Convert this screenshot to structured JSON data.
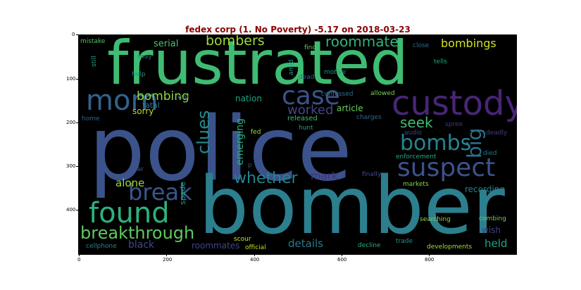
{
  "title": "fedex corp (1. No Poverty) -5.17 on 2018-03-23",
  "x_ticks": [
    "0",
    "200",
    "400",
    "600",
    "800"
  ],
  "y_ticks": [
    "0",
    "100",
    "200",
    "300",
    "400"
  ],
  "words": [
    {
      "text": "police",
      "color": "#3b528b"
    },
    {
      "text": "bomber",
      "color": "#2c7f8e"
    },
    {
      "text": "frustrated",
      "color": "#3fbc73"
    },
    {
      "text": "custody",
      "color": "#482677"
    },
    {
      "text": "mom",
      "color": "#33638d"
    },
    {
      "text": "case",
      "color": "#3b528b"
    },
    {
      "text": "suspect",
      "color": "#3b528b"
    },
    {
      "text": "found",
      "color": "#2db27d"
    },
    {
      "text": "break",
      "color": "#39568c"
    },
    {
      "text": "breakthrough",
      "color": "#5ec962"
    },
    {
      "text": "bombs",
      "color": "#25848e"
    },
    {
      "text": "big",
      "color": "#2c728e"
    },
    {
      "text": "whether",
      "color": "#26828e"
    },
    {
      "text": "clues",
      "color": "#238a8d"
    },
    {
      "text": "bombing",
      "color": "#8fd744"
    },
    {
      "text": "bombers",
      "color": "#a0da39"
    },
    {
      "text": "roommate",
      "color": "#2fb47c"
    },
    {
      "text": "bombings",
      "color": "#d2e21b"
    },
    {
      "text": "worked",
      "color": "#404688"
    },
    {
      "text": "seek",
      "color": "#3fbc73"
    },
    {
      "text": "serial",
      "color": "#4ac16d"
    },
    {
      "text": "details",
      "color": "#2a788e"
    },
    {
      "text": "held",
      "color": "#20a386"
    },
    {
      "text": "black",
      "color": "#3e4a89"
    },
    {
      "text": "roommates",
      "color": "#414487"
    },
    {
      "text": "mark",
      "color": "#46307e"
    },
    {
      "text": "alone",
      "color": "#9bd93c"
    },
    {
      "text": "emerging",
      "color": "#29af7f"
    },
    {
      "text": "article",
      "color": "#6ccd5a"
    },
    {
      "text": "recording",
      "color": "#277f8e"
    },
    {
      "text": "wish",
      "color": "#433e85"
    },
    {
      "text": "nation",
      "color": "#20a386"
    },
    {
      "text": "sorry",
      "color": "#b5de2b"
    },
    {
      "text": "fatal",
      "color": "#2a788e"
    },
    {
      "text": "spade",
      "color": "#1f9e89"
    },
    {
      "text": "mistake",
      "color": "#52c569"
    },
    {
      "text": "find",
      "color": "#65cb5e"
    },
    {
      "text": "close",
      "color": "#2f6c8e"
    },
    {
      "text": "tells",
      "color": "#22a785"
    },
    {
      "text": "may",
      "color": "#33638d"
    },
    {
      "text": "still",
      "color": "#1fa088"
    },
    {
      "text": "amid",
      "color": "#1fa187"
    },
    {
      "text": "help",
      "color": "#1f9a8a"
    },
    {
      "text": "dead",
      "color": "#31678e"
    },
    {
      "text": "motive",
      "color": "#20928c"
    },
    {
      "text": "confessed",
      "color": "#2c728e"
    },
    {
      "text": "allowed",
      "color": "#7ad151"
    },
    {
      "text": "war",
      "color": "#365c8d"
    },
    {
      "text": "home",
      "color": "#33638d"
    },
    {
      "text": "released",
      "color": "#3bbb75"
    },
    {
      "text": "charges",
      "color": "#31678e"
    },
    {
      "text": "fed",
      "color": "#a8db34"
    },
    {
      "text": "hunt",
      "color": "#1fa188"
    },
    {
      "text": "spree",
      "color": "#453781"
    },
    {
      "text": "audio",
      "color": "#3f4788"
    },
    {
      "text": "deadly",
      "color": "#433e85"
    },
    {
      "text": "died",
      "color": "#2a768e"
    },
    {
      "text": "enforcement",
      "color": "#22a884"
    },
    {
      "text": "p",
      "color": "#3e4a89"
    },
    {
      "text": "fear",
      "color": "#3b528b"
    },
    {
      "text": "finally",
      "color": "#3e4c8a"
    },
    {
      "text": "markets",
      "color": "#86d549"
    },
    {
      "text": "combing",
      "color": "#6ece58"
    },
    {
      "text": "searching",
      "color": "#90d743"
    },
    {
      "text": "scour",
      "color": "#d8e219"
    },
    {
      "text": "official",
      "color": "#c2df23"
    },
    {
      "text": "decline",
      "color": "#27ad81"
    },
    {
      "text": "trade",
      "color": "#20928c"
    },
    {
      "text": "developments",
      "color": "#a5db36"
    },
    {
      "text": "cellphone",
      "color": "#25858e"
    }
  ]
}
